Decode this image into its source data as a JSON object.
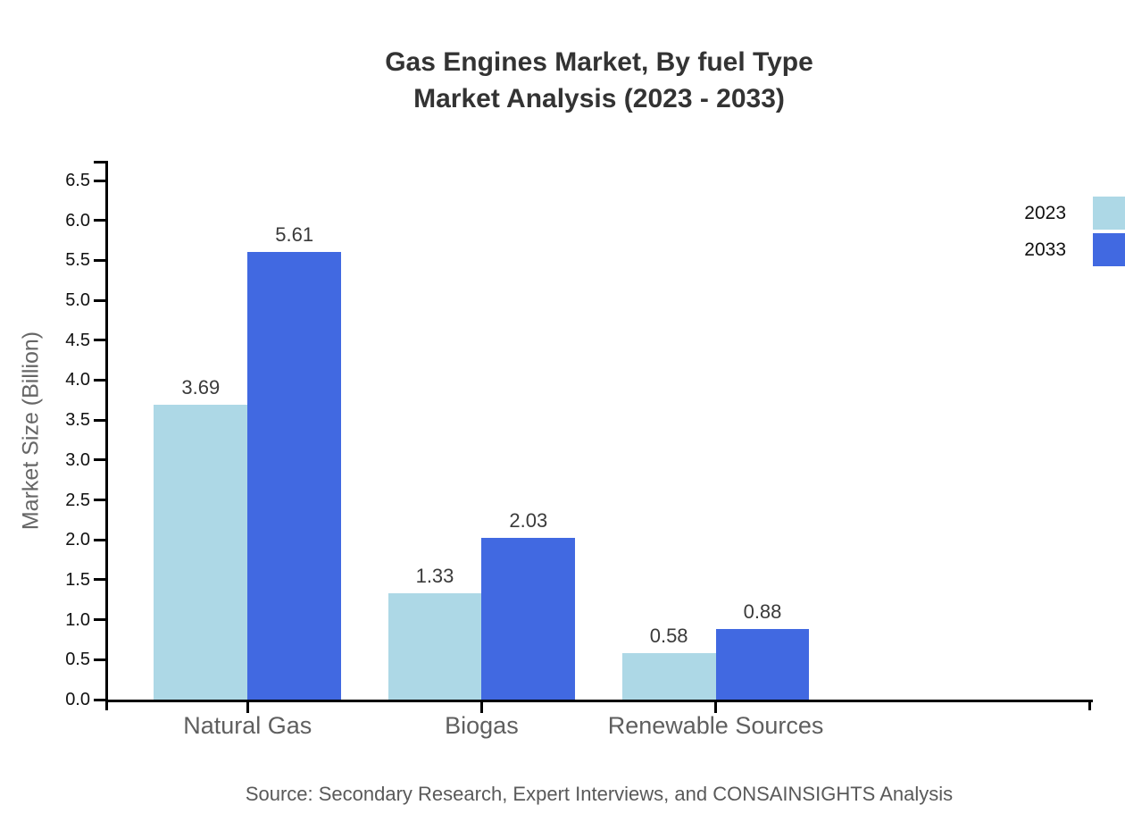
{
  "header": {
    "title_line1": "Gas Engines Market, By fuel Type",
    "title_line2": "Market Analysis (2023 - 2033)"
  },
  "chart_data": {
    "type": "bar",
    "title": "Gas Engines Market, By fuel Type Market Analysis (2023 - 2033)",
    "categories": [
      "Natural Gas",
      "Biogas",
      "Renewable Sources"
    ],
    "series": [
      {
        "name": "2023",
        "color": "#ADD8E6",
        "values": [
          3.69,
          1.33,
          0.58
        ],
        "value_labels": [
          "3.69",
          "1.33",
          "0.58"
        ]
      },
      {
        "name": "2033",
        "color": "#4169E1",
        "values": [
          5.61,
          2.03,
          0.88
        ],
        "value_labels": [
          "5.61",
          "2.03",
          "0.88"
        ]
      }
    ],
    "xlabel": "",
    "ylabel": "Market Size (Billion)",
    "ylim": [
      0.0,
      6.5
    ],
    "ytick_step": 0.5,
    "grid": false,
    "legend_position": "top-right"
  },
  "footer": {
    "source": "Source: Secondary Research, Expert Interviews, and CONSAINSIGHTS Analysis"
  },
  "colors": {
    "series_2023": "#ADD8E6",
    "series_2033": "#4169E1",
    "axis_line": "#000000",
    "title_text": "#333333",
    "tick_label_text": "#111111",
    "category_label_text": "#5f5f5f",
    "axis_title_text": "#666666",
    "value_label_text": "#3a3a3a",
    "legend_text": "#111111",
    "source_text": "#595959",
    "background": "#ffffff"
  }
}
